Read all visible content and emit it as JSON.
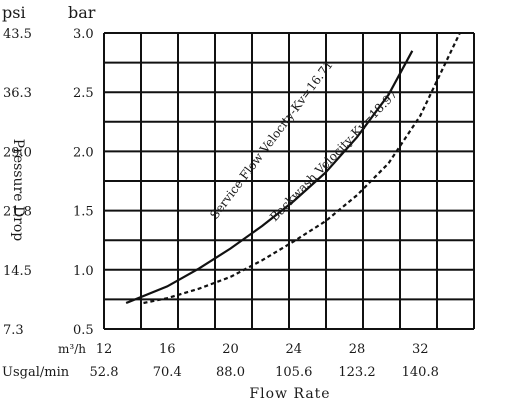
{
  "chart_data": {
    "type": "line",
    "xlabel": "Flow Rate",
    "ylabel": "Pressure Drop",
    "y_unit_psi": "psi",
    "y_unit_bar": "bar",
    "x_unit_m3h": "m³/h",
    "x_unit_usgal": "Usgal/min",
    "x_ticks_m3h": [
      "12",
      "16",
      "20",
      "24",
      "28",
      "32"
    ],
    "x_ticks_usgal": [
      "52.8",
      "70.4",
      "88.0",
      "105.6",
      "123.2",
      "140.8"
    ],
    "y_ticks_bar": [
      "0.5",
      "1.0",
      "1.5",
      "2.0",
      "2.5",
      "3.0"
    ],
    "y_ticks_psi": [
      "7.3",
      "14.5",
      "21.8",
      "29.0",
      "36.3",
      "43.5"
    ],
    "xlim": [
      12,
      35.4
    ],
    "ylim": [
      0.5,
      3.0
    ],
    "grid": true,
    "series": [
      {
        "name": "Service Flow Velocity-Kv=16.71",
        "style": "solid",
        "x": [
          13.4,
          16,
          18,
          20,
          22,
          24,
          26,
          28,
          30,
          31.5
        ],
        "y": [
          0.72,
          0.86,
          1.01,
          1.18,
          1.37,
          1.58,
          1.82,
          2.12,
          2.48,
          2.85
        ]
      },
      {
        "name": "Backwash Velocity-Kv=18.97",
        "style": "dashed",
        "x": [
          14.5,
          16,
          18,
          20,
          22,
          24,
          26,
          28,
          30,
          32,
          34.5
        ],
        "y": [
          0.72,
          0.76,
          0.84,
          0.94,
          1.08,
          1.24,
          1.41,
          1.63,
          1.9,
          2.3,
          3.0
        ]
      }
    ]
  }
}
